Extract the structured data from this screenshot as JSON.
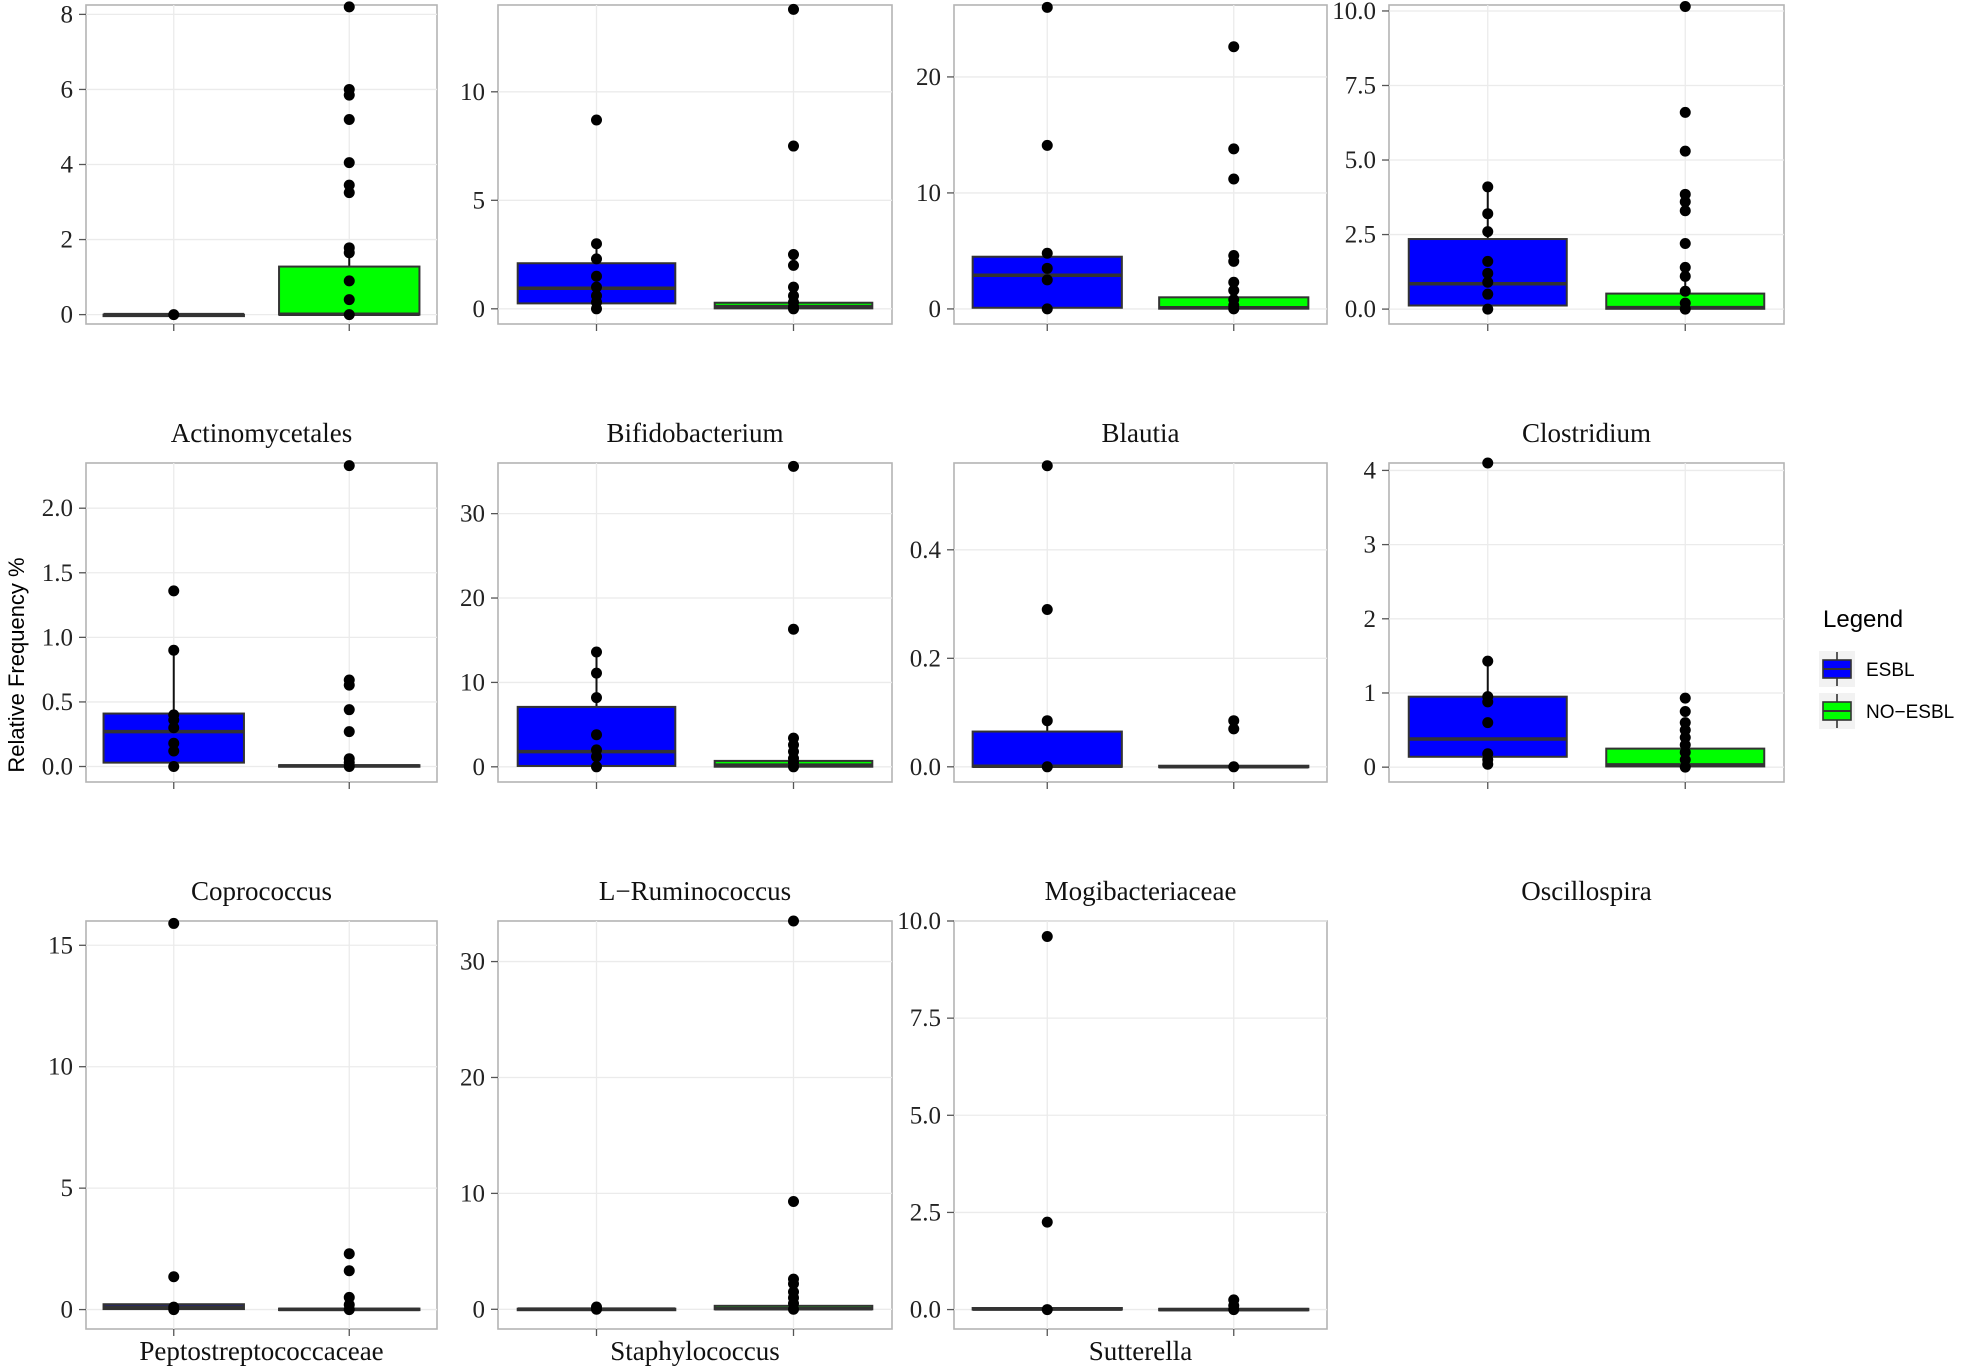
{
  "chart_data": {
    "type": "boxplot-facets",
    "ylabel": "Relative Frequency %",
    "legend": {
      "title": "Legend",
      "placement": "right",
      "entries": [
        {
          "name": "ESBL",
          "color": "#0000ff"
        },
        {
          "name": "NO−ESBL",
          "color": "#00ff00"
        }
      ]
    },
    "grid": true,
    "facets": [
      {
        "name": "Actinomycetales",
        "ylim": [
          -0.25,
          8.25
        ],
        "ticks": [
          {
            "v": 0,
            "label": "0"
          },
          {
            "v": 2,
            "label": "2"
          },
          {
            "v": 4,
            "label": "4"
          },
          {
            "v": 6,
            "label": "6"
          },
          {
            "v": 8,
            "label": "8"
          }
        ],
        "groups": [
          {
            "q1": 0,
            "median": 0,
            "q3": 0,
            "whisker_low": 0,
            "whisker_high": 0,
            "points": [
              0
            ]
          },
          {
            "q1": 0,
            "median": 0.01,
            "q3": 1.28,
            "whisker_low": 0,
            "whisker_high": 1.6,
            "points": [
              0,
              0.4,
              0.9,
              1.65,
              1.78,
              3.25,
              3.45,
              4.05,
              5.2,
              5.85,
              6.0,
              8.2
            ]
          }
        ]
      },
      {
        "name": "Bifidobacterium",
        "ylim": [
          -0.7,
          14.0
        ],
        "ticks": [
          {
            "v": 0,
            "label": "0"
          },
          {
            "v": 5,
            "label": "5"
          },
          {
            "v": 10,
            "label": "10"
          }
        ],
        "groups": [
          {
            "q1": 0.25,
            "median": 0.95,
            "q3": 2.1,
            "whisker_low": 0,
            "whisker_high": 3.0,
            "points": [
              0,
              0.3,
              0.6,
              1.0,
              1.5,
              2.3,
              3.0,
              8.7
            ]
          },
          {
            "q1": 0.02,
            "median": 0.1,
            "q3": 0.28,
            "whisker_low": 0,
            "whisker_high": 0.55,
            "points": [
              0,
              0.1,
              0.3,
              0.6,
              1.0,
              2.0,
              2.5,
              7.5,
              13.8
            ]
          }
        ]
      },
      {
        "name": "Blautia",
        "ylim": [
          -1.3,
          26.2
        ],
        "ticks": [
          {
            "v": 0,
            "label": "0"
          },
          {
            "v": 10,
            "label": "10"
          },
          {
            "v": 20,
            "label": "20"
          }
        ],
        "groups": [
          {
            "q1": 0.1,
            "median": 2.9,
            "q3": 4.5,
            "whisker_low": 0,
            "whisker_high": 4.8,
            "points": [
              0,
              2.5,
              3.5,
              4.8,
              14.1,
              26.0
            ]
          },
          {
            "q1": 0.02,
            "median": 0.1,
            "q3": 1.0,
            "whisker_low": 0,
            "whisker_high": 2.3,
            "points": [
              0,
              0.3,
              0.8,
              1.6,
              2.3,
              4.1,
              4.6,
              11.2,
              13.8,
              22.6
            ]
          }
        ]
      },
      {
        "name": "Clostridium",
        "ylim": [
          -0.5,
          10.2
        ],
        "ticks": [
          {
            "v": 0,
            "label": "0.0"
          },
          {
            "v": 2.5,
            "label": "2.5"
          },
          {
            "v": 5,
            "label": "5.0"
          },
          {
            "v": 7.5,
            "label": "7.5"
          },
          {
            "v": 10,
            "label": "10.0"
          }
        ],
        "groups": [
          {
            "q1": 0.12,
            "median": 0.85,
            "q3": 2.35,
            "whisker_low": 0,
            "whisker_high": 4.1,
            "points": [
              0,
              0.5,
              0.9,
              1.2,
              1.6,
              2.6,
              3.2,
              4.1
            ]
          },
          {
            "q1": 0.01,
            "median": 0.05,
            "q3": 0.52,
            "whisker_low": 0,
            "whisker_high": 1.1,
            "points": [
              0,
              0.2,
              0.6,
              1.1,
              1.4,
              2.2,
              3.3,
              3.6,
              3.85,
              5.3,
              6.6,
              10.15
            ]
          }
        ]
      },
      {
        "name": "Coprococcus",
        "ylim": [
          -0.12,
          2.35
        ],
        "ticks": [
          {
            "v": 0,
            "label": "0.0"
          },
          {
            "v": 0.5,
            "label": "0.5"
          },
          {
            "v": 1.0,
            "label": "1.0"
          },
          {
            "v": 1.5,
            "label": "1.5"
          },
          {
            "v": 2.0,
            "label": "2.0"
          }
        ],
        "groups": [
          {
            "q1": 0.03,
            "median": 0.27,
            "q3": 0.41,
            "whisker_low": 0,
            "whisker_high": 0.9,
            "points": [
              0,
              0.12,
              0.18,
              0.3,
              0.36,
              0.4,
              0.9,
              1.36
            ]
          },
          {
            "q1": 0,
            "median": 0.005,
            "q3": 0.01,
            "whisker_low": 0,
            "whisker_high": 0.02,
            "points": [
              0,
              0.03,
              0.06,
              0.27,
              0.44,
              0.63,
              0.67,
              2.33
            ]
          }
        ]
      },
      {
        "name": "L−Ruminococcus",
        "ylim": [
          -1.8,
          36.0
        ],
        "ticks": [
          {
            "v": 0,
            "label": "0"
          },
          {
            "v": 10,
            "label": "10"
          },
          {
            "v": 20,
            "label": "20"
          },
          {
            "v": 30,
            "label": "30"
          }
        ],
        "groups": [
          {
            "q1": 0.1,
            "median": 1.8,
            "q3": 7.1,
            "whisker_low": 0,
            "whisker_high": 13.6,
            "points": [
              0,
              1.2,
              2.0,
              3.8,
              8.2,
              11.1,
              13.6
            ]
          },
          {
            "q1": 0.01,
            "median": 0.2,
            "q3": 0.7,
            "whisker_low": 0,
            "whisker_high": 1.5,
            "points": [
              0,
              0.5,
              1.0,
              1.8,
              2.6,
              3.4,
              16.3,
              35.6
            ]
          }
        ]
      },
      {
        "name": "Mogibacteriaceae",
        "ylim": [
          -0.028,
          0.56
        ],
        "ticks": [
          {
            "v": 0,
            "label": "0.0"
          },
          {
            "v": 0.2,
            "label": "0.2"
          },
          {
            "v": 0.4,
            "label": "0.4"
          }
        ],
        "groups": [
          {
            "q1": 0,
            "median": 0.001,
            "q3": 0.065,
            "whisker_low": 0,
            "whisker_high": 0.085,
            "points": [
              0,
              0.085,
              0.29,
              0.555
            ]
          },
          {
            "q1": 0,
            "median": 0,
            "q3": 0.002,
            "whisker_low": 0,
            "whisker_high": 0.004,
            "points": [
              0,
              0.07,
              0.085
            ]
          }
        ]
      },
      {
        "name": "Oscillospira",
        "ylim": [
          -0.2,
          4.1
        ],
        "ticks": [
          {
            "v": 0,
            "label": "0"
          },
          {
            "v": 1,
            "label": "1"
          },
          {
            "v": 2,
            "label": "2"
          },
          {
            "v": 3,
            "label": "3"
          },
          {
            "v": 4,
            "label": "4"
          }
        ],
        "groups": [
          {
            "q1": 0.14,
            "median": 0.38,
            "q3": 0.95,
            "whisker_low": 0.04,
            "whisker_high": 1.43,
            "points": [
              0.04,
              0.1,
              0.18,
              0.6,
              0.88,
              0.95,
              1.43,
              4.1
            ]
          },
          {
            "q1": 0.01,
            "median": 0.03,
            "q3": 0.25,
            "whisker_low": 0,
            "whisker_high": 0.5,
            "points": [
              0,
              0.1,
              0.2,
              0.3,
              0.4,
              0.5,
              0.6,
              0.75,
              0.93
            ]
          }
        ]
      },
      {
        "name": "Peptostreptococcaceae",
        "ylim": [
          -0.8,
          16.0
        ],
        "ticks": [
          {
            "v": 0,
            "label": "0"
          },
          {
            "v": 5,
            "label": "5"
          },
          {
            "v": 10,
            "label": "10"
          },
          {
            "v": 15,
            "label": "15"
          }
        ],
        "groups": [
          {
            "q1": 0.02,
            "median": 0.1,
            "q3": 0.22,
            "whisker_low": 0,
            "whisker_high": 0.3,
            "points": [
              0,
              0.1,
              1.35,
              15.9
            ]
          },
          {
            "q1": 0,
            "median": 0.01,
            "q3": 0.04,
            "whisker_low": 0,
            "whisker_high": 0.08,
            "points": [
              0,
              0.2,
              0.5,
              1.6,
              2.3
            ]
          }
        ]
      },
      {
        "name": "Staphylococcus",
        "ylim": [
          -1.7,
          33.5
        ],
        "ticks": [
          {
            "v": 0,
            "label": "0"
          },
          {
            "v": 10,
            "label": "10"
          },
          {
            "v": 20,
            "label": "20"
          },
          {
            "v": 30,
            "label": "30"
          }
        ],
        "groups": [
          {
            "q1": 0,
            "median": 0.01,
            "q3": 0.05,
            "whisker_low": 0,
            "whisker_high": 0.1,
            "points": [
              0,
              0.2
            ]
          },
          {
            "q1": 0,
            "median": 0.05,
            "q3": 0.3,
            "whisker_low": 0,
            "whisker_high": 0.6,
            "points": [
              0,
              0.5,
              1.0,
              1.5,
              2.2,
              2.6,
              9.3,
              33.5
            ]
          }
        ]
      },
      {
        "name": "Sutterella",
        "ylim": [
          -0.5,
          10.0
        ],
        "ticks": [
          {
            "v": 0,
            "label": "0.0"
          },
          {
            "v": 2.5,
            "label": "2.5"
          },
          {
            "v": 5,
            "label": "5.0"
          },
          {
            "v": 7.5,
            "label": "7.5"
          },
          {
            "v": 10,
            "label": "10.0"
          }
        ],
        "groups": [
          {
            "q1": 0,
            "median": 0.01,
            "q3": 0.04,
            "whisker_low": 0,
            "whisker_high": 0.06,
            "points": [
              0,
              2.25,
              9.6
            ]
          },
          {
            "q1": 0,
            "median": 0,
            "q3": 0.02,
            "whisker_low": 0,
            "whisker_high": 0.03,
            "points": [
              0,
              0.1,
              0.25
            ]
          }
        ]
      }
    ]
  }
}
